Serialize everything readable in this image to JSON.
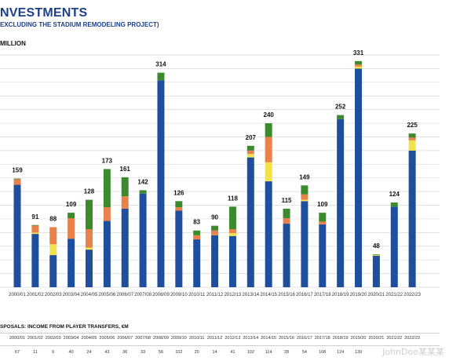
{
  "header": {
    "title": "NVESTMENTS",
    "subtitle": "EXCLUDING THE STADIUM REMODELING PROJECT)",
    "unit": "MILLION"
  },
  "chart_data": {
    "type": "bar",
    "stacked": true,
    "title": "NVESTMENTS",
    "ylabel": "MILLION",
    "ylim": [
      0,
      340
    ],
    "grid": true,
    "categories": [
      "2000/01",
      "2001/02",
      "2002/03",
      "2003/04",
      "2004/05",
      "2005/06",
      "2006/07",
      "2007/08",
      "2008/09",
      "2009/10",
      "2010/11",
      "2011/12",
      "2012/13",
      "2013/14",
      "2014/15",
      "2015/16",
      "2016/17",
      "2017/18",
      "2018/19",
      "2019/20",
      "2020/21",
      "2021/22",
      "2022/23"
    ],
    "totals": [
      159,
      91,
      88,
      109,
      128,
      173,
      161,
      142,
      314,
      126,
      83,
      90,
      118,
      207,
      240,
      115,
      149,
      109,
      252,
      331,
      48,
      124,
      225
    ],
    "series": [
      {
        "color": "#1f4e9c",
        "values": [
          150,
          78,
          47,
          71,
          55,
          97,
          115,
          137,
          303,
          112,
          70,
          76,
          75,
          190,
          155,
          93,
          126,
          92,
          246,
          320,
          46,
          118,
          200
        ]
      },
      {
        "color": "#f0e34c",
        "values": [
          0,
          2,
          16,
          0,
          3,
          0,
          0,
          0,
          0,
          0,
          0,
          0,
          4,
          5,
          28,
          0,
          2,
          0,
          0,
          3,
          1,
          0,
          15
        ]
      },
      {
        "color": "#e8814a",
        "values": [
          8,
          10,
          25,
          30,
          27,
          20,
          18,
          0,
          0,
          5,
          6,
          7,
          6,
          5,
          37,
          8,
          8,
          4,
          0,
          3,
          0,
          0,
          4
        ]
      },
      {
        "color": "#3b8a2e",
        "values": [
          1,
          1,
          0,
          8,
          43,
          56,
          28,
          5,
          11,
          9,
          7,
          7,
          33,
          7,
          20,
          14,
          13,
          13,
          6,
          5,
          1,
          6,
          6
        ]
      }
    ]
  },
  "transfers_table": {
    "title": "SPOSALS: INCOME FROM PLAYER TRANSFERS, €M",
    "seasons": [
      "2000/01",
      "2001/02",
      "2002/03",
      "2003/04",
      "2004/05",
      "2005/06",
      "2006/07",
      "2007/08",
      "2008/09",
      "2009/10",
      "2010/11",
      "2011/12",
      "2012/13",
      "2013/14",
      "2014/15",
      "2015/16",
      "2016/17",
      "2017/18",
      "2018/19",
      "2019/20",
      "2020/21",
      "2021/22",
      "2022/23"
    ],
    "values": [
      "67",
      "11",
      "6",
      "40",
      "24",
      "43",
      "36",
      "33",
      "56",
      "102",
      "20",
      "14",
      "41",
      "102",
      "114",
      "28",
      "54",
      "108",
      "124",
      "139",
      "",
      "",
      ""
    ]
  },
  "watermark": "JohnDoe某某某"
}
